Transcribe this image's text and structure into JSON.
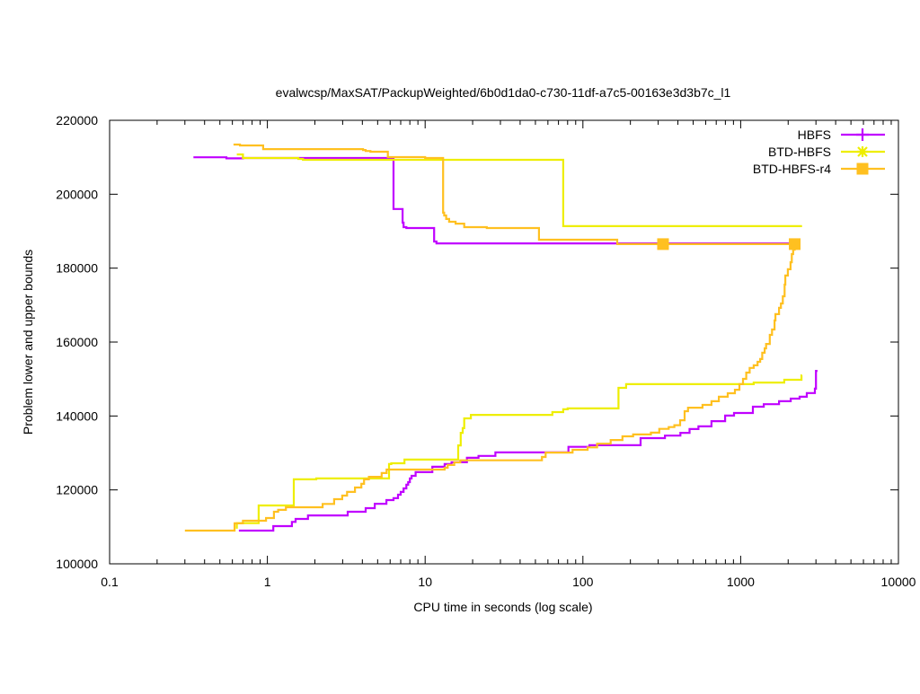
{
  "chart_data": {
    "type": "line",
    "title": "evalwcsp/MaxSAT/PackupWeighted/6b0d1da0-c730-11df-a7c5-00163e3d3b7c_l1",
    "xlabel": "CPU time in seconds (log scale)",
    "ylabel": "Problem lower and upper bounds",
    "xscale": "log",
    "xlim": [
      0.1,
      10000
    ],
    "ylim": [
      100000,
      220000
    ],
    "xticks": [
      0.1,
      1,
      10,
      100,
      1000,
      10000
    ],
    "xtick_labels": [
      "0.1",
      "1",
      "10",
      "100",
      "1000",
      "10000"
    ],
    "yticks": [
      100000,
      120000,
      140000,
      160000,
      180000,
      200000,
      220000
    ],
    "ytick_labels": [
      "100000",
      "120000",
      "140000",
      "160000",
      "180000",
      "200000",
      "220000"
    ],
    "legend_position": "top-right",
    "series": [
      {
        "name": "HBFS",
        "color": "#c000ff",
        "marker": "plus",
        "upper": [
          [
            0.34,
            210000
          ],
          [
            0.55,
            209700
          ],
          [
            0.7,
            209800
          ],
          [
            6.3,
            196000
          ],
          [
            7.2,
            192300
          ],
          [
            7.3,
            191100
          ],
          [
            7.6,
            190850
          ],
          [
            11.4,
            187200
          ],
          [
            11.8,
            186700
          ],
          [
            2250,
            186700
          ]
        ],
        "lower": [
          [
            0.66,
            109000
          ],
          [
            1.09,
            110200
          ],
          [
            1.43,
            111350
          ],
          [
            1.51,
            112150
          ],
          [
            1.81,
            113100
          ],
          [
            3.23,
            114100
          ],
          [
            4.2,
            115050
          ],
          [
            4.79,
            116250
          ],
          [
            5.68,
            117250
          ],
          [
            6.3,
            117750
          ],
          [
            6.73,
            118700
          ],
          [
            7.0,
            119450
          ],
          [
            7.3,
            120400
          ],
          [
            7.6,
            121400
          ],
          [
            7.8,
            122100
          ],
          [
            8.0,
            123100
          ],
          [
            8.2,
            123800
          ],
          [
            8.7,
            124800
          ],
          [
            11.1,
            126250
          ],
          [
            13.3,
            127000
          ],
          [
            14.7,
            127500
          ],
          [
            18.4,
            128700
          ],
          [
            21.8,
            129200
          ],
          [
            27.9,
            130150
          ],
          [
            59,
            130150
          ],
          [
            81,
            131650
          ],
          [
            110,
            132100
          ],
          [
            232,
            134000
          ],
          [
            331,
            134700
          ],
          [
            415,
            135450
          ],
          [
            474,
            136450
          ],
          [
            540,
            137200
          ],
          [
            653,
            138600
          ],
          [
            797,
            140100
          ],
          [
            907,
            140800
          ],
          [
            1195,
            142500
          ],
          [
            1400,
            143200
          ],
          [
            1750,
            144000
          ],
          [
            2075,
            144700
          ],
          [
            2365,
            145200
          ],
          [
            2625,
            146200
          ],
          [
            2955,
            147400
          ],
          [
            3000,
            152200
          ],
          [
            3070,
            152200
          ]
        ]
      },
      {
        "name": "BTD-HBFS",
        "color": "#eeee00",
        "marker": "star",
        "upper": [
          [
            0.64,
            210770
          ],
          [
            0.7,
            209800
          ],
          [
            1.57,
            209550
          ],
          [
            1.68,
            209300
          ],
          [
            75,
            191350
          ],
          [
            2450,
            191350
          ]
        ],
        "lower": [
          [
            0.64,
            109500
          ],
          [
            0.64,
            111000
          ],
          [
            0.88,
            115800
          ],
          [
            1.47,
            122850
          ],
          [
            2.04,
            123100
          ],
          [
            5.9,
            127000
          ],
          [
            6.1,
            127200
          ],
          [
            7.4,
            128200
          ],
          [
            16.2,
            132050
          ],
          [
            16.8,
            135450
          ],
          [
            17.3,
            136700
          ],
          [
            17.7,
            139350
          ],
          [
            19.5,
            140300
          ],
          [
            64,
            141050
          ],
          [
            75,
            141800
          ],
          [
            80,
            142050
          ],
          [
            165,
            142050
          ],
          [
            168,
            147600
          ],
          [
            188,
            148600
          ],
          [
            1210,
            149050
          ],
          [
            1890,
            149800
          ],
          [
            2430,
            151000
          ],
          [
            2450,
            151000
          ]
        ]
      },
      {
        "name": "BTD-HBFS-r4",
        "color": "#ffc020",
        "marker": "square",
        "upper": [
          [
            0.61,
            213440
          ],
          [
            0.67,
            213200
          ],
          [
            0.94,
            212200
          ],
          [
            4.04,
            211950
          ],
          [
            4.2,
            211700
          ],
          [
            4.5,
            211500
          ],
          [
            5.8,
            210050
          ],
          [
            10,
            209800
          ],
          [
            13.0,
            195000
          ],
          [
            13.2,
            194250
          ],
          [
            13.6,
            193300
          ],
          [
            14.2,
            192550
          ],
          [
            15.6,
            192050
          ],
          [
            17.7,
            191100
          ],
          [
            24.6,
            190850
          ],
          [
            52.7,
            187700
          ],
          [
            165,
            186500
          ],
          [
            2200,
            186500
          ]
        ],
        "lower": [
          [
            0.3,
            109000
          ],
          [
            0.62,
            110950
          ],
          [
            0.7,
            111650
          ],
          [
            0.98,
            112400
          ],
          [
            1.1,
            114100
          ],
          [
            1.17,
            114600
          ],
          [
            1.31,
            115300
          ],
          [
            2.24,
            116200
          ],
          [
            2.65,
            117500
          ],
          [
            2.98,
            118450
          ],
          [
            3.2,
            119450
          ],
          [
            3.59,
            120650
          ],
          [
            3.94,
            121650
          ],
          [
            4.1,
            122850
          ],
          [
            4.4,
            123550
          ],
          [
            5.3,
            124550
          ],
          [
            5.7,
            125500
          ],
          [
            13.3,
            126000
          ],
          [
            13.9,
            126750
          ],
          [
            15.3,
            127450
          ],
          [
            16.7,
            128000
          ],
          [
            55,
            128900
          ],
          [
            58,
            130100
          ],
          [
            86,
            130850
          ],
          [
            107,
            131500
          ],
          [
            123,
            132500
          ],
          [
            150,
            133500
          ],
          [
            178,
            134500
          ],
          [
            208,
            135000
          ],
          [
            270,
            135500
          ],
          [
            305,
            136500
          ],
          [
            350,
            137000
          ],
          [
            380,
            137500
          ],
          [
            413,
            138850
          ],
          [
            441,
            141300
          ],
          [
            464,
            142250
          ],
          [
            573,
            143000
          ],
          [
            653,
            144000
          ],
          [
            727,
            145200
          ],
          [
            828,
            146150
          ],
          [
            920,
            147100
          ],
          [
            982,
            148600
          ],
          [
            1035,
            150050
          ],
          [
            1085,
            151750
          ],
          [
            1140,
            153000
          ],
          [
            1210,
            153700
          ],
          [
            1280,
            154650
          ],
          [
            1330,
            155400
          ],
          [
            1370,
            157100
          ],
          [
            1420,
            158300
          ],
          [
            1450,
            159500
          ],
          [
            1530,
            161950
          ],
          [
            1580,
            163400
          ],
          [
            1640,
            165850
          ],
          [
            1660,
            167550
          ],
          [
            1750,
            169250
          ],
          [
            1800,
            170450
          ],
          [
            1850,
            172400
          ],
          [
            1900,
            175550
          ],
          [
            1920,
            178000
          ],
          [
            1990,
            179700
          ],
          [
            2070,
            181600
          ],
          [
            2110,
            183800
          ],
          [
            2150,
            185000
          ],
          [
            2200,
            186500
          ]
        ],
        "marker_points": [
          [
            322,
            186500
          ],
          [
            2200,
            186500
          ]
        ]
      }
    ]
  }
}
